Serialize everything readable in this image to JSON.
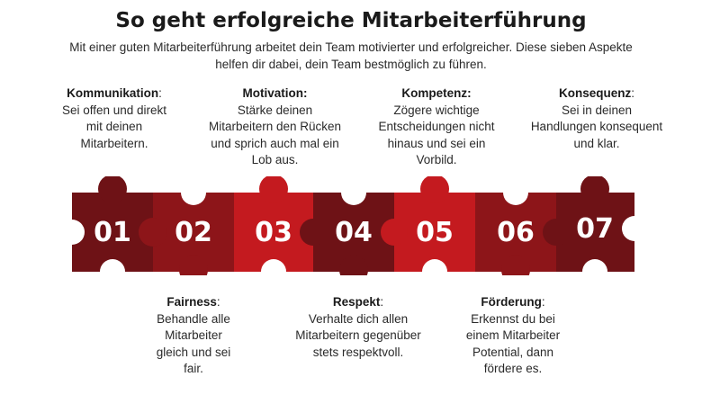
{
  "title": "So geht erfolgreiche Mitarbeiterführung",
  "subtitle": "Mit einer guten Mitarbeiterführung arbeitet dein Team motivierter und erfolgreicher. Diese sieben Aspekte helfen dir dabei, dein Team bestmöglich zu führen.",
  "top_cards": [
    {
      "heading": "Kommunikation",
      "colon": ":",
      "text": "Sei offen und direkt mit deinen Mitarbeitern."
    },
    {
      "heading": "Motivation:",
      "colon": "",
      "text": "Stärke deinen Mitarbeitern den Rücken und sprich auch mal ein Lob aus."
    },
    {
      "heading": "Kompetenz:",
      "colon": "",
      "text": "Zögere wichtige Entscheidungen nicht hinaus und sei ein Vorbild."
    },
    {
      "heading": "Konsequenz",
      "colon": ":",
      "text": "Sei in deinen Handlungen konsequent und klar."
    }
  ],
  "bottom_cards": [
    {
      "heading": "Fairness",
      "colon": ":",
      "text": "Behandle alle Mitarbeiter gleich und sei fair."
    },
    {
      "heading": "Respekt",
      "colon": ":",
      "text": "Verhalte dich allen Mitarbeitern gegenüber stets respektvoll."
    },
    {
      "heading": "Förderung",
      "colon": ":",
      "text": "Erkennst du bei einem Mitarbeiter Potential, dann fördere es."
    }
  ],
  "pieces": [
    {
      "number": "01",
      "color": "#6e1216"
    },
    {
      "number": "02",
      "color": "#8d1519"
    },
    {
      "number": "03",
      "color": "#c41a1f"
    },
    {
      "number": "04",
      "color": "#6e1216"
    },
    {
      "number": "05",
      "color": "#c41a1f"
    },
    {
      "number": "06",
      "color": "#8d1519"
    },
    {
      "number": "07",
      "color": "#6e1216"
    }
  ]
}
